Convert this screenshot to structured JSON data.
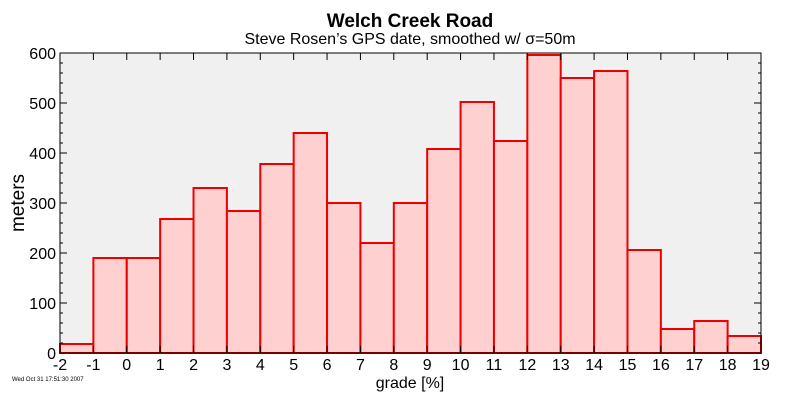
{
  "chart_data": {
    "type": "bar",
    "title": "Welch Creek Road",
    "subtitle": "Steve Rosen’s GPS date, smoothed w/ σ=50m",
    "xlabel": "grade [%]",
    "ylabel": "meters",
    "xlim": [
      -2,
      19
    ],
    "ylim": [
      0,
      600
    ],
    "xticks": [
      -2,
      -1,
      0,
      1,
      2,
      3,
      4,
      5,
      6,
      7,
      8,
      9,
      10,
      11,
      12,
      13,
      14,
      15,
      16,
      17,
      18,
      19
    ],
    "yticks": [
      0,
      100,
      200,
      300,
      400,
      500,
      600
    ],
    "bin_width": 1,
    "bins": [
      {
        "x0": -2,
        "value": 18
      },
      {
        "x0": -1,
        "value": 190
      },
      {
        "x0": 0,
        "value": 190
      },
      {
        "x0": 1,
        "value": 268
      },
      {
        "x0": 2,
        "value": 330
      },
      {
        "x0": 3,
        "value": 284
      },
      {
        "x0": 4,
        "value": 378
      },
      {
        "x0": 5,
        "value": 440
      },
      {
        "x0": 6,
        "value": 300
      },
      {
        "x0": 7,
        "value": 220
      },
      {
        "x0": 8,
        "value": 300
      },
      {
        "x0": 9,
        "value": 408
      },
      {
        "x0": 10,
        "value": 502
      },
      {
        "x0": 11,
        "value": 424
      },
      {
        "x0": 12,
        "value": 596
      },
      {
        "x0": 13,
        "value": 550
      },
      {
        "x0": 14,
        "value": 564
      },
      {
        "x0": 15,
        "value": 206
      },
      {
        "x0": 16,
        "value": 48
      },
      {
        "x0": 17,
        "value": 64
      },
      {
        "x0": 18,
        "value": 34
      }
    ],
    "grid": false,
    "colors": {
      "bar_fill": "#ffd0d0",
      "bar_stroke": "#ee0000",
      "plot_bg": "#f0f0f0"
    }
  },
  "timestamp": "Wed Oct 31 17:51:30 2007"
}
